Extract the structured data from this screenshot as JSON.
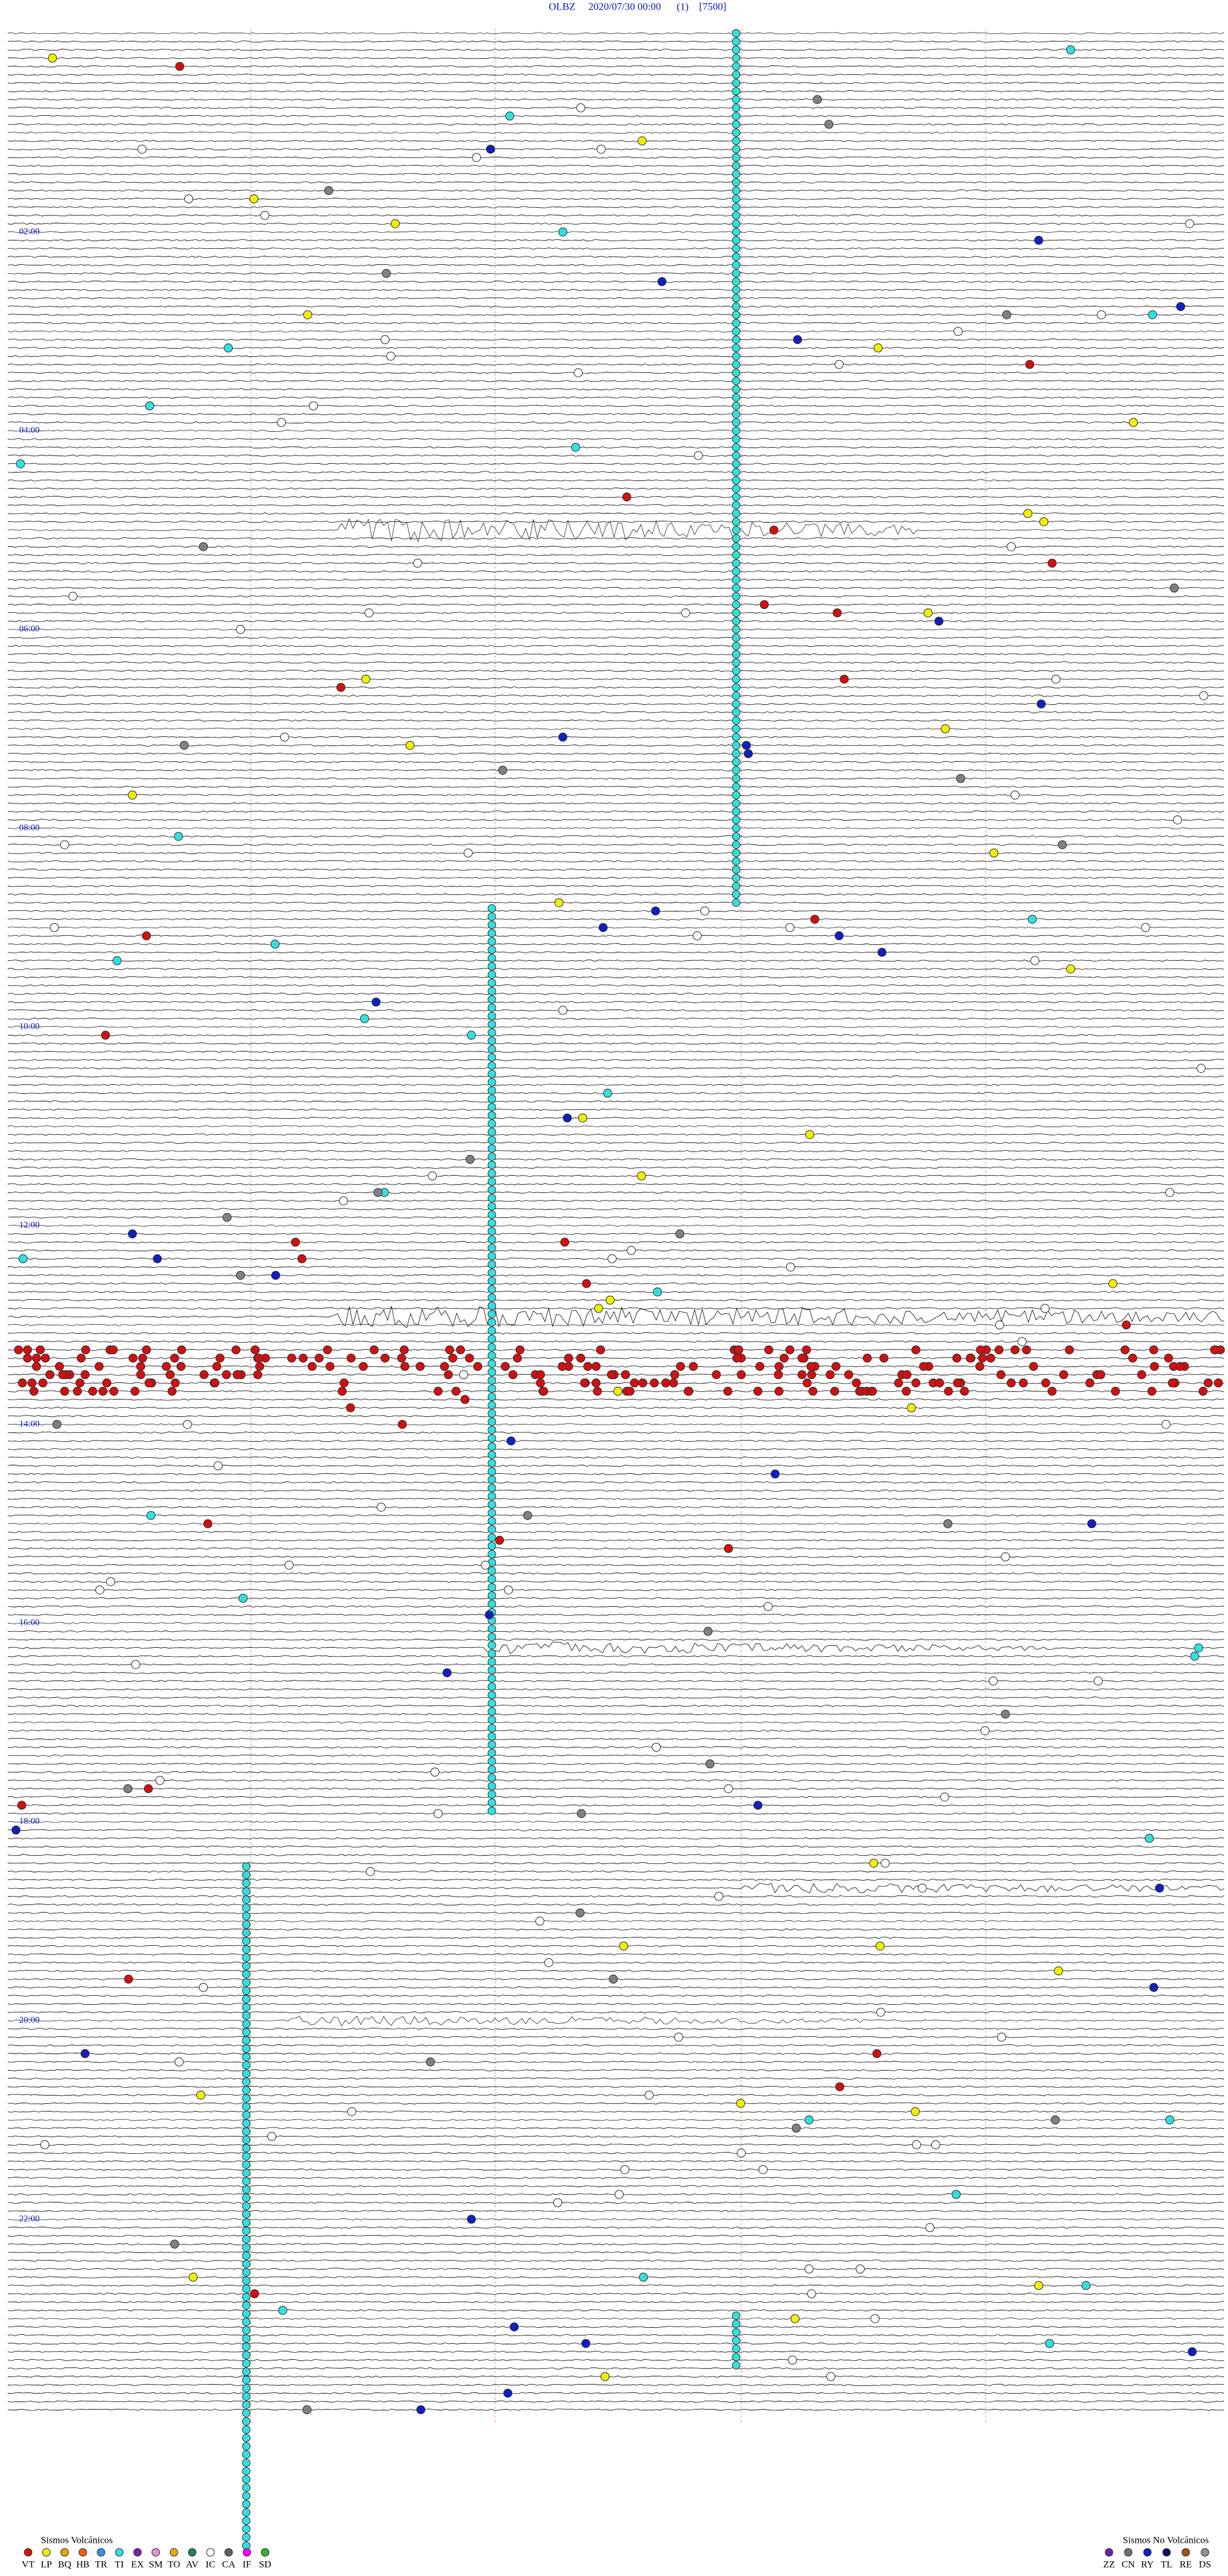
{
  "header": {
    "station": "OLBZ",
    "datetime": "2020/07/30 00:00",
    "channel": "(1)",
    "scale": "[7500]"
  },
  "time_labels": [
    "02:00",
    "04:00",
    "06:00",
    "08:00",
    "10:00",
    "12:00",
    "14:00",
    "16:00",
    "18:00",
    "20:00",
    "22:00"
  ],
  "legend": {
    "volcanic": {
      "title": "Sismos Volcánicos",
      "codes": [
        {
          "code": "VT",
          "color": "#d01010"
        },
        {
          "code": "LP",
          "color": "#f0f000"
        },
        {
          "code": "BQ",
          "color": "#f0a000"
        },
        {
          "code": "HB",
          "color": "#f06000"
        },
        {
          "code": "TR",
          "color": "#3a8ee6"
        },
        {
          "code": "TI",
          "color": "#30e0e0"
        },
        {
          "code": "EX",
          "color": "#8020a0"
        },
        {
          "code": "SM",
          "color": "#e090e0"
        },
        {
          "code": "TO",
          "color": "#e0b000"
        },
        {
          "code": "AV",
          "color": "#208060"
        },
        {
          "code": "IC",
          "color": "#ffffff"
        },
        {
          "code": "CA",
          "color": "#606060"
        },
        {
          "code": "IF",
          "color": "#ff00ff"
        },
        {
          "code": "SD",
          "color": "#30b030"
        }
      ]
    },
    "non_volcanic": {
      "title": "Sismos No Volcánicos",
      "codes": [
        {
          "code": "ZZ",
          "color": "#7020a0"
        },
        {
          "code": "CN",
          "color": "#707070"
        },
        {
          "code": "RY",
          "color": "#1020c0"
        },
        {
          "code": "TL",
          "color": "#101060"
        },
        {
          "code": "RE",
          "color": "#a05020"
        },
        {
          "code": "DS",
          "color": "#909090"
        }
      ]
    }
  }
}
